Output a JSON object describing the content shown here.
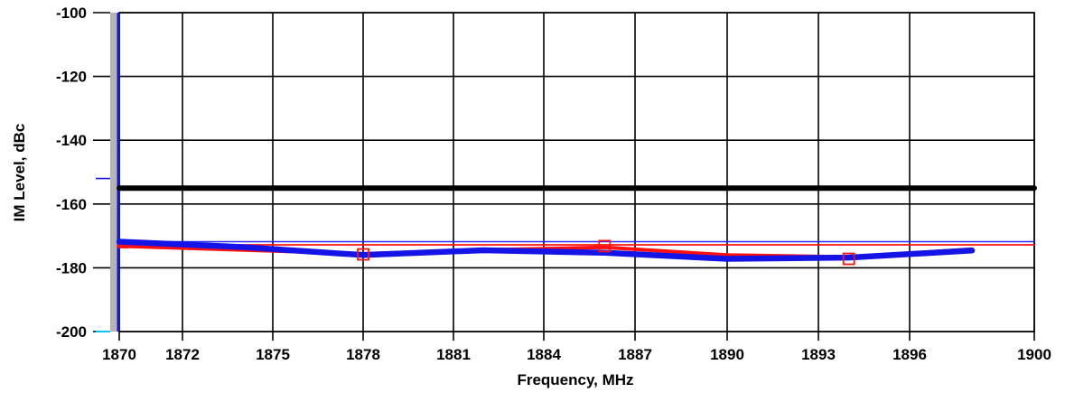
{
  "chart_data": {
    "type": "line",
    "xlabel": "Frequency, MHz",
    "ylabel": "IM Level, dBc",
    "x_ticks": [
      "1870",
      "1872",
      "1875",
      "1878",
      "1881",
      "1884",
      "1887",
      "1890",
      "1893",
      "1896",
      "1900"
    ],
    "y_ticks": [
      "-100",
      "-120",
      "-140",
      "-160",
      "-180",
      "-200"
    ],
    "ylim": [
      -200,
      -100
    ],
    "grid": true,
    "colors": {
      "threshold": "#000000",
      "red_series": "#ff1010",
      "blue_series": "#1414e6",
      "thin_blue": "#2a2aff",
      "left_bar": "#b4b4b4",
      "cyan_mark": "#00c8ff"
    },
    "series": [
      {
        "key": "threshold",
        "x": [
          1870,
          1900
        ],
        "values": [
          -155,
          -155
        ]
      },
      {
        "key": "red_flat",
        "x": [
          1870,
          1900
        ],
        "values": [
          -172.8,
          -172.8
        ]
      },
      {
        "key": "blue_flat",
        "x": [
          1870,
          1900
        ],
        "values": [
          -171.8,
          -171.8
        ]
      },
      {
        "key": "red_trace",
        "x": [
          1870,
          1878,
          1882,
          1886,
          1890,
          1894,
          1898
        ],
        "values": [
          -173.2,
          -175.6,
          -174.4,
          -173.6,
          -176,
          -176.6,
          -174.2
        ]
      },
      {
        "key": "blue_trace",
        "x": [
          1870,
          1874,
          1878,
          1882,
          1886,
          1890,
          1894,
          1898
        ],
        "values": [
          -171.8,
          -173.5,
          -176,
          -174.5,
          -175.3,
          -177.2,
          -176.8,
          -174.6
        ]
      }
    ],
    "markers": [
      {
        "x": 1878,
        "y": -175.8
      },
      {
        "x": 1886,
        "y": -173.2
      },
      {
        "x": 1894,
        "y": -177.2
      }
    ]
  }
}
